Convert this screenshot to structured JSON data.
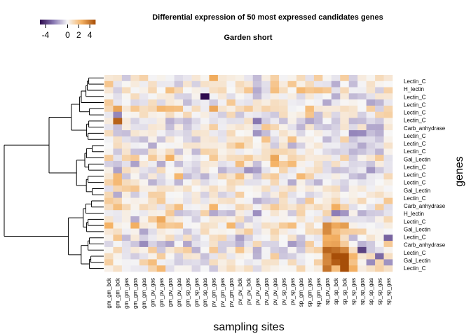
{
  "chart_data": {
    "type": "heatmap",
    "title": "Differential expression of 50 most expressed candidates genes",
    "subtitle": "Garden short",
    "xlabel": "sampling sites",
    "ylabel": "genes",
    "colorscale": {
      "colors": [
        "#2d0a4e",
        "#8a7ab4",
        "#f7f7f7",
        "#f5b264",
        "#a74e08"
      ],
      "range": [
        -5,
        5
      ],
      "ticks": [
        -4,
        0,
        2,
        4
      ],
      "tick_labels": [
        "-4",
        "0",
        "2",
        "4"
      ]
    },
    "column_labels": [
      "gm_gm_bck",
      "gm_gm_bck",
      "gm_gm_gas",
      "gm_gm_gas",
      "gm_gm_gas",
      "gm_pv_gas",
      "gm_pv_gas",
      "gm_pv_gas",
      "gm_pv_gas",
      "gm_sp_gas",
      "gm_sp_gas",
      "gm_sp_gas",
      "pv_gm_gas",
      "pv_gm_gas",
      "pv_gm_gas",
      "pv_pv_bck",
      "pv_pv_bck",
      "pv_pv_gas",
      "pv_pv_gas",
      "pv_pv_gas",
      "pv_sp_gas",
      "pv_sp_gas",
      "sp_gm_gas",
      "sp_gm_gas",
      "sp_gm_gas",
      "sp_pv_gas",
      "sp_sp_bck",
      "sp_sp_bck",
      "sp_sp_gas",
      "sp_sp_gas",
      "sp_sp_gas",
      "sp_sp_gas",
      "sp_sp_gas"
    ],
    "row_labels": [
      "Lectin_C",
      "H_lectin",
      "Lectin_C",
      "Lectin_C",
      "Lectin_C",
      "Lectin_C",
      "Carb_anhydrase",
      "Lectin_C",
      "Lectin_C",
      "Lectin_C",
      "Gal_Lectin",
      "Lectin_C",
      "Lectin_C",
      "Lectin_C",
      "Gal_Lectin",
      "Lectin_C",
      "Carb_anhydrase",
      "H_lectin",
      "Lectin_C",
      "Gal_Lectin",
      "Lectin_C",
      "Carb_anhydrase",
      "Lectin_C",
      "Gal_Lectin",
      "Lectin_C"
    ]
  }
}
